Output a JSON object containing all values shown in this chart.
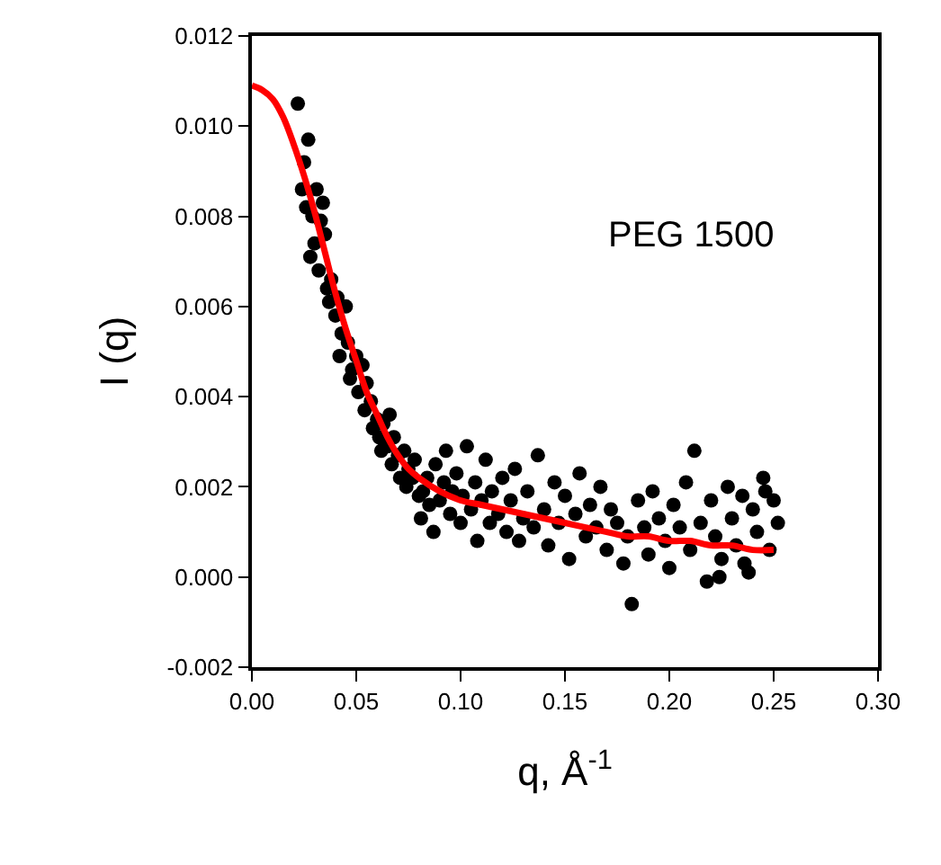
{
  "chart_data": {
    "type": "scatter",
    "xlabel": "q, Å$^{-1}$",
    "ylabel": "I (q)",
    "annotations": [
      "PEG 1500"
    ],
    "xlim": [
      0,
      0.3
    ],
    "xticks": [
      {
        "value": 0,
        "label": "0.00"
      },
      {
        "value": 0.05,
        "label": "0.05"
      },
      {
        "value": 0.1,
        "label": "0.10"
      },
      {
        "value": 0.15,
        "label": "0.15"
      },
      {
        "value": 0.2,
        "label": "0.20"
      },
      {
        "value": 0.25,
        "label": "0.25"
      },
      {
        "value": 0.3,
        "label": "0.30"
      }
    ],
    "ylim": [
      -0.002,
      0.012
    ],
    "yticks": [
      {
        "value": -0.002,
        "label": "-0.002"
      },
      {
        "value": 0,
        "label": "0.000"
      },
      {
        "value": 0.002,
        "label": "0.002"
      },
      {
        "value": 0.004,
        "label": "0.004"
      },
      {
        "value": 0.006,
        "label": "0.006"
      },
      {
        "value": 0.008,
        "label": "0.008"
      },
      {
        "value": 0.01,
        "label": "0.010"
      },
      {
        "value": 0.012,
        "label": "0.012"
      }
    ],
    "legend": false,
    "series": [
      {
        "marker": "circle",
        "color": "#000000",
        "x": [
          0.022,
          0.025,
          0.024,
          0.027,
          0.026,
          0.029,
          0.03,
          0.031,
          0.033,
          0.034,
          0.028,
          0.032,
          0.035,
          0.036,
          0.038,
          0.037,
          0.04,
          0.041,
          0.043,
          0.042,
          0.045,
          0.046,
          0.048,
          0.047,
          0.05,
          0.051,
          0.053,
          0.055,
          0.054,
          0.057,
          0.058,
          0.06,
          0.061,
          0.063,
          0.062,
          0.065,
          0.066,
          0.068,
          0.067,
          0.07,
          0.071,
          0.073,
          0.075,
          0.074,
          0.077,
          0.078,
          0.08,
          0.082,
          0.081,
          0.084,
          0.085,
          0.087,
          0.088,
          0.09,
          0.092,
          0.093,
          0.095,
          0.096,
          0.098,
          0.1,
          0.101,
          0.103,
          0.105,
          0.107,
          0.108,
          0.11,
          0.112,
          0.114,
          0.115,
          0.118,
          0.12,
          0.122,
          0.124,
          0.126,
          0.128,
          0.13,
          0.132,
          0.135,
          0.137,
          0.14,
          0.142,
          0.145,
          0.147,
          0.15,
          0.152,
          0.155,
          0.157,
          0.16,
          0.162,
          0.165,
          0.167,
          0.17,
          0.172,
          0.175,
          0.178,
          0.18,
          0.182,
          0.185,
          0.188,
          0.19,
          0.192,
          0.195,
          0.198,
          0.2,
          0.202,
          0.205,
          0.208,
          0.21,
          0.212,
          0.215,
          0.218,
          0.22,
          0.222,
          0.225,
          0.228,
          0.23,
          0.232,
          0.235,
          0.238,
          0.24,
          0.242,
          0.245,
          0.248,
          0.25,
          0.252,
          0.224,
          0.236,
          0.246
        ],
        "values": [
          0.0105,
          0.0092,
          0.0086,
          0.0097,
          0.0082,
          0.008,
          0.0074,
          0.0086,
          0.0079,
          0.0083,
          0.0071,
          0.0068,
          0.0076,
          0.0064,
          0.0066,
          0.0061,
          0.0058,
          0.0062,
          0.0054,
          0.0049,
          0.006,
          0.0052,
          0.0046,
          0.0044,
          0.0049,
          0.0041,
          0.0047,
          0.0043,
          0.0037,
          0.0039,
          0.0033,
          0.0035,
          0.0031,
          0.0034,
          0.0028,
          0.0029,
          0.0036,
          0.0031,
          0.0025,
          0.0027,
          0.0022,
          0.0028,
          0.0024,
          0.002,
          0.0022,
          0.0026,
          0.0018,
          0.0019,
          0.0013,
          0.0022,
          0.0016,
          0.001,
          0.0025,
          0.0017,
          0.0021,
          0.0028,
          0.0014,
          0.0019,
          0.0023,
          0.0012,
          0.0018,
          0.0029,
          0.0015,
          0.0021,
          0.0008,
          0.0017,
          0.0026,
          0.0012,
          0.0019,
          0.0014,
          0.0022,
          0.001,
          0.0017,
          0.0024,
          0.0008,
          0.0013,
          0.0019,
          0.0011,
          0.0027,
          0.0015,
          0.0007,
          0.0021,
          0.0012,
          0.0018,
          0.0004,
          0.0014,
          0.0023,
          0.0009,
          0.0016,
          0.0011,
          0.002,
          0.0006,
          0.0015,
          0.0012,
          0.0003,
          0.0009,
          -0.0006,
          0.0017,
          0.0011,
          0.0005,
          0.0019,
          0.0013,
          0.0008,
          0.0002,
          0.0016,
          0.0011,
          0.0021,
          0.0006,
          0.0028,
          0.0012,
          -0.0001,
          0.0017,
          0.0009,
          0.0004,
          0.002,
          0.0013,
          0.0007,
          0.0018,
          0.0001,
          0.0015,
          0.001,
          0.0022,
          0.0006,
          0.0017,
          0.0012,
          0.0,
          0.0003,
          0.0019
        ]
      },
      {
        "type": "line",
        "marker": "none",
        "line_style": "solid",
        "color": "#ff0000",
        "x": [
          0.0,
          0.005,
          0.01,
          0.015,
          0.02,
          0.025,
          0.03,
          0.035,
          0.04,
          0.045,
          0.05,
          0.055,
          0.06,
          0.065,
          0.07,
          0.075,
          0.08,
          0.09,
          0.1,
          0.11,
          0.12,
          0.13,
          0.14,
          0.15,
          0.16,
          0.17,
          0.18,
          0.19,
          0.2,
          0.21,
          0.22,
          0.23,
          0.24,
          0.25
        ],
        "values": [
          0.0109,
          0.0108,
          0.0106,
          0.0102,
          0.0096,
          0.0089,
          0.0081,
          0.0072,
          0.0063,
          0.0055,
          0.0048,
          0.0041,
          0.0036,
          0.0031,
          0.0027,
          0.0024,
          0.0022,
          0.0019,
          0.0017,
          0.0016,
          0.0015,
          0.0014,
          0.0013,
          0.0012,
          0.0011,
          0.001,
          0.0009,
          0.0009,
          0.0008,
          0.0008,
          0.0007,
          0.0007,
          0.0006,
          0.0006
        ]
      }
    ]
  }
}
